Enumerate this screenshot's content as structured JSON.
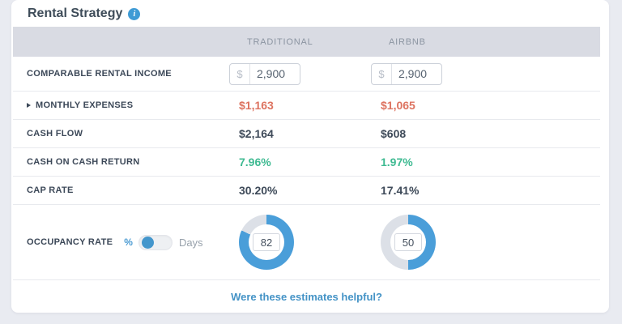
{
  "header": {
    "title": "Rental Strategy"
  },
  "columns": {
    "traditional": "TRADITIONAL",
    "airbnb": "AIRBNB"
  },
  "rows": {
    "income": {
      "label": "COMPARABLE RENTAL INCOME",
      "currency": "$",
      "traditional": "2,900",
      "airbnb": "2,900"
    },
    "expenses": {
      "label": "MONTHLY EXPENSES",
      "traditional": "$1,163",
      "airbnb": "$1,065"
    },
    "cashflow": {
      "label": "CASH FLOW",
      "traditional": "$2,164",
      "airbnb": "$608"
    },
    "coc": {
      "label": "CASH ON CASH RETURN",
      "traditional": "7.96%",
      "airbnb": "1.97%"
    },
    "caprate": {
      "label": "CAP RATE",
      "traditional": "30.20%",
      "airbnb": "17.41%"
    },
    "occupancy": {
      "label": "OCCUPANCY RATE",
      "unit_percent": "%",
      "unit_days": "Days",
      "selected_unit": "%",
      "traditional": "82",
      "airbnb": "50",
      "traditional_pct": 82,
      "airbnb_pct": 50
    }
  },
  "footer": {
    "link": "Were these estimates helpful?"
  },
  "colors": {
    "accent": "#4a9ed9",
    "negative": "#dd7360",
    "positive": "#3fba92",
    "track": "#dce0e7",
    "link": "#4493c6",
    "header-band": "#d9dbe3",
    "text-dark": "#3c4858",
    "text-muted": "#8b94a1",
    "page-bg": "#e9ebf1"
  }
}
